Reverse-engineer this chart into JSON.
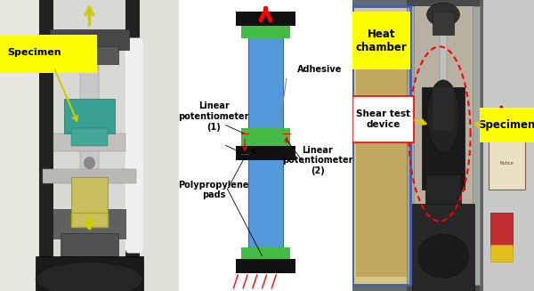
{
  "figsize": [
    6.0,
    3.27
  ],
  "dpi": 100,
  "bg_color": "#ffffff",
  "diagram": {
    "blue_color": "#5599dd",
    "green_color": "#44bb44",
    "black_color": "#111111",
    "label_fontsize": 7,
    "label_bold_fontsize": 8
  },
  "left_panel": {
    "bg": "#1a1a1a",
    "specimen_label_bg": "#ffff00",
    "specimen_label_text": "Specimen",
    "arrow_color": "#ddcc00"
  },
  "right_panel": {
    "bg": "#888888",
    "heat_chamber_label_bg": "#ffff00",
    "heat_chamber_text": "Heat\nchamber",
    "specimen_label_bg": "#ffff00",
    "specimen_text": "Specimen",
    "shear_box_bg": "#ffffff",
    "shear_text": "Shear test\ndevice",
    "dashed_circle_color": "red",
    "arrow_color": "#ddcc00"
  }
}
